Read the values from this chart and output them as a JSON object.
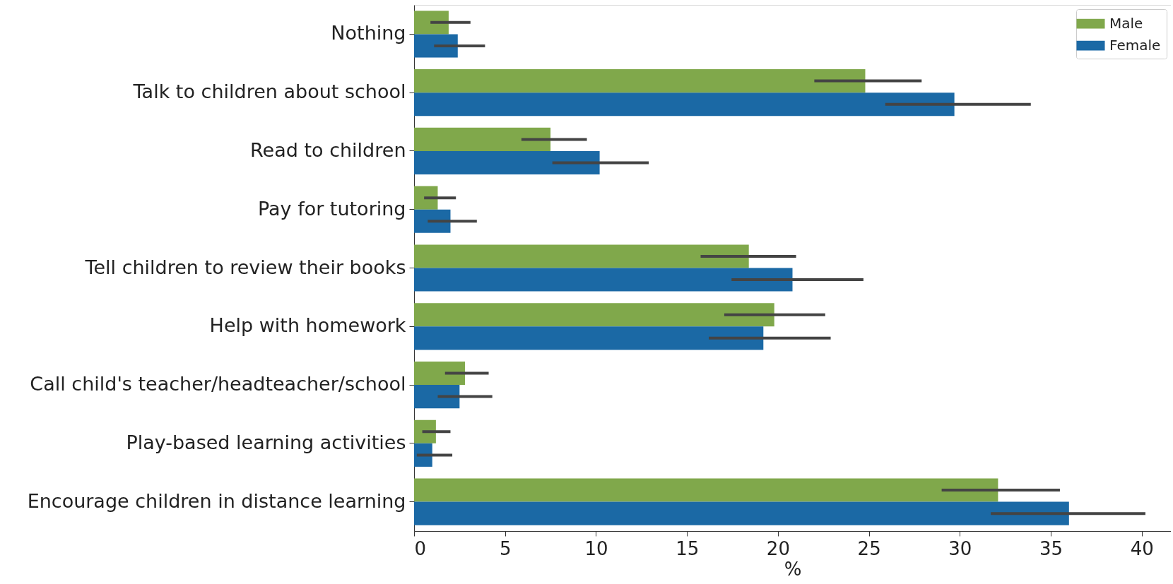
{
  "chart_data": {
    "type": "bar",
    "orientation": "horizontal",
    "xlabel": "%",
    "categories": [
      "Nothing",
      "Talk to children about school",
      "Read to children",
      "Pay for tutoring",
      "Tell children to review their books",
      "Help with homework",
      "Call child's teacher/headteacher/school",
      "Play-based learning activities",
      "Encourage children in distance learning"
    ],
    "series": [
      {
        "name": "Male",
        "color": "#80a84b",
        "values": [
          1.9,
          24.8,
          7.5,
          1.3,
          18.4,
          19.8,
          2.8,
          1.2,
          32.1
        ],
        "errors": [
          [
            0.9,
            3.1
          ],
          [
            22.0,
            27.9
          ],
          [
            5.9,
            9.5
          ],
          [
            0.55,
            2.3
          ],
          [
            15.75,
            21.0
          ],
          [
            17.05,
            22.6
          ],
          [
            1.7,
            4.1
          ],
          [
            0.45,
            2.0
          ],
          [
            29.0,
            35.5
          ]
        ]
      },
      {
        "name": "Female",
        "color": "#1b69a5",
        "values": [
          2.4,
          29.7,
          10.2,
          2.0,
          20.8,
          19.2,
          2.5,
          1.0,
          36.0
        ],
        "errors": [
          [
            1.1,
            3.9
          ],
          [
            25.9,
            33.9
          ],
          [
            7.6,
            12.9
          ],
          [
            0.75,
            3.45
          ],
          [
            17.45,
            24.7
          ],
          [
            16.2,
            22.9
          ],
          [
            1.3,
            4.3
          ],
          [
            0.15,
            2.1
          ],
          [
            31.7,
            40.2
          ]
        ]
      }
    ],
    "xlim": [
      0,
      41.6
    ],
    "xticks": [
      0,
      5,
      10,
      15,
      20,
      25,
      30,
      35,
      40
    ],
    "legend": "top right",
    "grid": false
  }
}
